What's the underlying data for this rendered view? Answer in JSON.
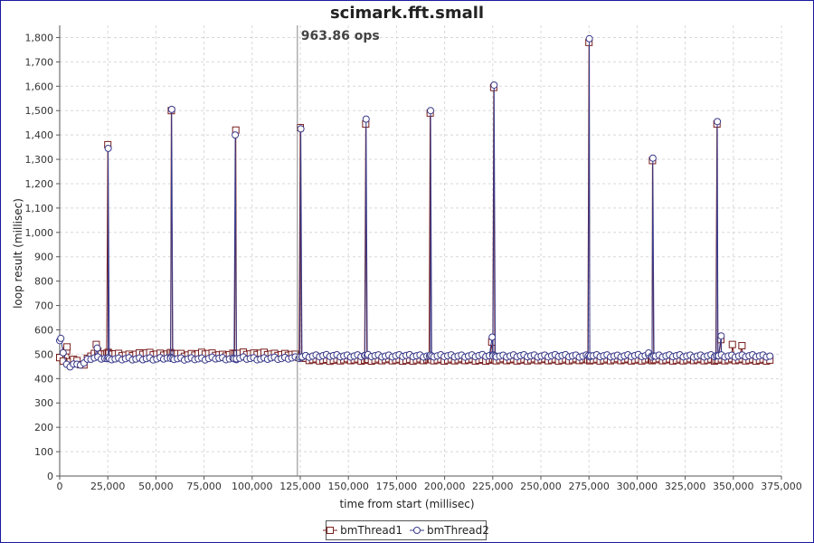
{
  "chart_data": {
    "type": "line",
    "title": "scimark.fft.small",
    "xlabel": "time from start (millisec)",
    "ylabel": "loop result (millisec)",
    "xlim": [
      0,
      375000
    ],
    "ylim": [
      0,
      1850
    ],
    "x_ticks": [
      0,
      25000,
      50000,
      75000,
      100000,
      125000,
      150000,
      175000,
      200000,
      225000,
      250000,
      275000,
      300000,
      325000,
      350000,
      375000
    ],
    "y_ticks": [
      0,
      100,
      200,
      300,
      400,
      500,
      600,
      700,
      800,
      900,
      1000,
      1100,
      1200,
      1300,
      1400,
      1500,
      1600,
      1700,
      1800
    ],
    "grid": true,
    "legend_position": "bottom",
    "annotation": {
      "text": "963.86 ops",
      "x": 123500
    },
    "series": [
      {
        "name": "bmThread1",
        "color": "#7a1f1f",
        "marker": "square",
        "baseline_points": [
          [
            0,
            490
          ],
          [
            2000,
            470
          ],
          [
            4000,
            520
          ],
          [
            5500,
            470
          ],
          [
            7000,
            480
          ],
          [
            9000,
            470
          ],
          [
            11000,
            460
          ],
          [
            13000,
            455
          ],
          [
            15000,
            490
          ],
          [
            17000,
            500
          ],
          [
            20000,
            510
          ],
          [
            23000,
            500
          ],
          [
            26000,
            505
          ],
          [
            30000,
            500
          ],
          [
            35000,
            495
          ],
          [
            40000,
            500
          ],
          [
            45000,
            505
          ],
          [
            50000,
            500
          ],
          [
            55000,
            500
          ],
          [
            60000,
            505
          ],
          [
            65000,
            495
          ],
          [
            70000,
            500
          ],
          [
            75000,
            505
          ],
          [
            80000,
            500
          ],
          [
            85000,
            495
          ],
          [
            90000,
            500
          ],
          [
            95000,
            505
          ],
          [
            100000,
            500
          ],
          [
            105000,
            505
          ],
          [
            110000,
            500
          ],
          [
            115000,
            498
          ],
          [
            120000,
            500
          ],
          [
            123000,
            495
          ],
          [
            127000,
            480
          ],
          [
            130000,
            478
          ],
          [
            140000,
            475
          ],
          [
            150000,
            478
          ],
          [
            160000,
            475
          ],
          [
            170000,
            478
          ],
          [
            180000,
            475
          ],
          [
            190000,
            478
          ],
          [
            200000,
            476
          ],
          [
            210000,
            478
          ],
          [
            220000,
            475
          ],
          [
            230000,
            478
          ],
          [
            240000,
            476
          ],
          [
            250000,
            478
          ],
          [
            260000,
            476
          ],
          [
            270000,
            478
          ],
          [
            280000,
            476
          ],
          [
            290000,
            478
          ],
          [
            300000,
            476
          ],
          [
            310000,
            478
          ],
          [
            320000,
            476
          ],
          [
            330000,
            478
          ],
          [
            340000,
            476
          ],
          [
            350000,
            478
          ],
          [
            360000,
            476
          ],
          [
            370000,
            476
          ]
        ],
        "spikes": [
          [
            25000,
            1360
          ],
          [
            58000,
            1500
          ],
          [
            91500,
            1420
          ],
          [
            125000,
            1430
          ],
          [
            159000,
            1445
          ],
          [
            192500,
            1490
          ],
          [
            225500,
            1595
          ],
          [
            275000,
            1780
          ],
          [
            308000,
            1295
          ],
          [
            341500,
            1445
          ]
        ],
        "small_spikes": [
          [
            3800,
            530
          ],
          [
            19000,
            540
          ],
          [
            224500,
            550
          ],
          [
            343500,
            560
          ],
          [
            349500,
            540
          ],
          [
            354500,
            535
          ]
        ]
      },
      {
        "name": "bmThread2",
        "color": "#3a3a8a",
        "marker": "circle",
        "baseline_points": [
          [
            0,
            560
          ],
          [
            2000,
            500
          ],
          [
            3500,
            455
          ],
          [
            5000,
            450
          ],
          [
            7000,
            460
          ],
          [
            9000,
            455
          ],
          [
            11000,
            460
          ],
          [
            13000,
            465
          ],
          [
            15000,
            480
          ],
          [
            17000,
            485
          ],
          [
            20000,
            485
          ],
          [
            25000,
            482
          ],
          [
            30000,
            480
          ],
          [
            35000,
            482
          ],
          [
            40000,
            480
          ],
          [
            45000,
            482
          ],
          [
            50000,
            480
          ],
          [
            55000,
            485
          ],
          [
            60000,
            482
          ],
          [
            65000,
            480
          ],
          [
            70000,
            482
          ],
          [
            75000,
            480
          ],
          [
            80000,
            485
          ],
          [
            85000,
            482
          ],
          [
            90000,
            480
          ],
          [
            95000,
            485
          ],
          [
            100000,
            482
          ],
          [
            105000,
            480
          ],
          [
            110000,
            485
          ],
          [
            115000,
            482
          ],
          [
            120000,
            485
          ],
          [
            123000,
            485
          ],
          [
            127000,
            490
          ],
          [
            130000,
            492
          ],
          [
            140000,
            495
          ],
          [
            150000,
            492
          ],
          [
            160000,
            495
          ],
          [
            170000,
            492
          ],
          [
            180000,
            495
          ],
          [
            190000,
            492
          ],
          [
            200000,
            494
          ],
          [
            210000,
            492
          ],
          [
            220000,
            495
          ],
          [
            230000,
            492
          ],
          [
            240000,
            494
          ],
          [
            250000,
            492
          ],
          [
            260000,
            495
          ],
          [
            270000,
            492
          ],
          [
            280000,
            494
          ],
          [
            290000,
            492
          ],
          [
            300000,
            495
          ],
          [
            310000,
            492
          ],
          [
            320000,
            494
          ],
          [
            330000,
            492
          ],
          [
            340000,
            494
          ],
          [
            350000,
            492
          ],
          [
            360000,
            494
          ],
          [
            370000,
            492
          ]
        ],
        "spikes": [
          [
            25200,
            1345
          ],
          [
            58200,
            1505
          ],
          [
            91200,
            1400
          ],
          [
            125300,
            1425
          ],
          [
            159200,
            1465
          ],
          [
            192700,
            1500
          ],
          [
            225700,
            1605
          ],
          [
            275200,
            1795
          ],
          [
            308200,
            1305
          ],
          [
            341700,
            1455
          ]
        ],
        "small_spikes": [
          [
            600,
            565
          ],
          [
            19500,
            525
          ],
          [
            224700,
            570
          ],
          [
            343700,
            575
          ],
          [
            306000,
            505
          ]
        ]
      }
    ]
  }
}
